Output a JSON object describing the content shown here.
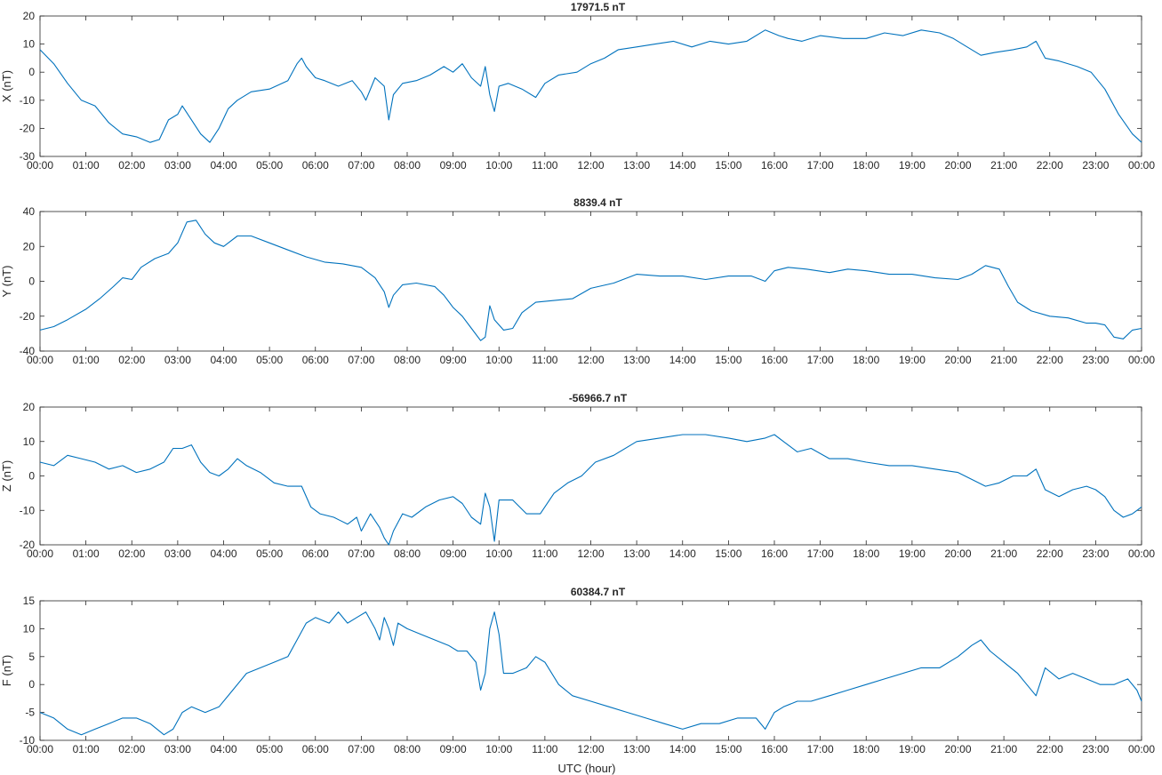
{
  "figure": {
    "xlabel": "UTC (hour)"
  },
  "colors": {
    "line": "#0072bd",
    "axis": "#262626"
  },
  "chart_data": [
    {
      "type": "line",
      "title": "17971.5 nT",
      "ylabel": "X (nT)",
      "xlabel": "",
      "xlim": [
        0,
        24
      ],
      "ylim": [
        -30,
        20
      ],
      "yticks": [
        -30,
        -20,
        -10,
        0,
        10,
        20
      ],
      "xtick_labels": [
        "00:00",
        "01:00",
        "02:00",
        "03:00",
        "04:00",
        "05:00",
        "06:00",
        "07:00",
        "08:00",
        "09:00",
        "10:00",
        "11:00",
        "12:00",
        "13:00",
        "14:00",
        "15:00",
        "16:00",
        "17:00",
        "18:00",
        "19:00",
        "20:00",
        "21:00",
        "22:00",
        "23:00",
        "00:00"
      ],
      "grid": false,
      "series": [
        {
          "x": [
            0,
            0.3,
            0.6,
            0.9,
            1.2,
            1.5,
            1.8,
            2.1,
            2.4,
            2.6,
            2.8,
            3.0,
            3.1,
            3.3,
            3.5,
            3.7,
            3.9,
            4.1,
            4.3,
            4.6,
            5.0,
            5.4,
            5.6,
            5.7,
            5.8,
            6.0,
            6.2,
            6.5,
            6.8,
            7.0,
            7.1,
            7.3,
            7.5,
            7.6,
            7.7,
            7.9,
            8.2,
            8.5,
            8.8,
            9.0,
            9.2,
            9.4,
            9.6,
            9.7,
            9.8,
            9.9,
            10.0,
            10.2,
            10.5,
            10.8,
            11.0,
            11.3,
            11.7,
            12.0,
            12.3,
            12.6,
            13.0,
            13.4,
            13.8,
            14.2,
            14.6,
            15.0,
            15.4,
            15.8,
            16.1,
            16.3,
            16.6,
            17.0,
            17.5,
            18.0,
            18.4,
            18.8,
            19.2,
            19.6,
            19.9,
            20.2,
            20.5,
            20.8,
            21.2,
            21.5,
            21.7,
            21.9,
            22.2,
            22.6,
            22.9,
            23.2,
            23.5,
            23.8,
            24.0
          ],
          "values": [
            8,
            3,
            -4,
            -10,
            -12,
            -18,
            -22,
            -23,
            -25,
            -24,
            -17,
            -15,
            -12,
            -17,
            -22,
            -25,
            -20,
            -13,
            -10,
            -7,
            -6,
            -3,
            3,
            5,
            2,
            -2,
            -3,
            -5,
            -3,
            -7,
            -10,
            -2,
            -5,
            -17,
            -8,
            -4,
            -3,
            -1,
            2,
            0,
            3,
            -2,
            -5,
            2,
            -8,
            -14,
            -5,
            -4,
            -6,
            -9,
            -4,
            -1,
            0,
            3,
            5,
            8,
            9,
            10,
            11,
            9,
            11,
            10,
            11,
            15,
            13,
            12,
            11,
            13,
            12,
            12,
            14,
            13,
            15,
            14,
            12,
            9,
            6,
            7,
            8,
            9,
            11,
            5,
            4,
            2,
            0,
            -6,
            -15,
            -22,
            -25
          ]
        }
      ]
    },
    {
      "type": "line",
      "title": "8839.4 nT",
      "ylabel": "Y (nT)",
      "xlabel": "",
      "xlim": [
        0,
        24
      ],
      "ylim": [
        -40,
        40
      ],
      "yticks": [
        -40,
        -20,
        0,
        20,
        40
      ],
      "xtick_labels": [
        "00:00",
        "01:00",
        "02:00",
        "03:00",
        "04:00",
        "05:00",
        "06:00",
        "07:00",
        "08:00",
        "09:00",
        "10:00",
        "11:00",
        "12:00",
        "13:00",
        "14:00",
        "15:00",
        "16:00",
        "17:00",
        "18:00",
        "19:00",
        "20:00",
        "21:00",
        "22:00",
        "23:00",
        "00:00"
      ],
      "grid": false,
      "series": [
        {
          "x": [
            0,
            0.3,
            0.6,
            1.0,
            1.3,
            1.6,
            1.8,
            2.0,
            2.2,
            2.5,
            2.8,
            3.0,
            3.2,
            3.4,
            3.6,
            3.8,
            4.0,
            4.3,
            4.6,
            5.0,
            5.4,
            5.8,
            6.2,
            6.6,
            7.0,
            7.3,
            7.5,
            7.6,
            7.7,
            7.9,
            8.2,
            8.6,
            8.8,
            9.0,
            9.2,
            9.4,
            9.6,
            9.7,
            9.8,
            9.9,
            10.1,
            10.3,
            10.5,
            10.8,
            11.2,
            11.6,
            12.0,
            12.5,
            13.0,
            13.5,
            14.0,
            14.5,
            15.0,
            15.5,
            15.8,
            16.0,
            16.3,
            16.7,
            17.2,
            17.6,
            18.0,
            18.5,
            19.0,
            19.5,
            20.0,
            20.3,
            20.6,
            20.9,
            21.1,
            21.3,
            21.6,
            22.0,
            22.4,
            22.8,
            23.0,
            23.2,
            23.4,
            23.6,
            23.8,
            24.0
          ],
          "values": [
            -28,
            -26,
            -22,
            -16,
            -10,
            -3,
            2,
            1,
            8,
            13,
            16,
            22,
            34,
            35,
            27,
            22,
            20,
            26,
            26,
            22,
            18,
            14,
            11,
            10,
            8,
            2,
            -6,
            -15,
            -8,
            -2,
            -1,
            -3,
            -8,
            -15,
            -20,
            -27,
            -34,
            -32,
            -14,
            -22,
            -28,
            -27,
            -18,
            -12,
            -11,
            -10,
            -4,
            -1,
            4,
            3,
            3,
            1,
            3,
            3,
            0,
            6,
            8,
            7,
            5,
            7,
            6,
            4,
            4,
            2,
            1,
            4,
            9,
            7,
            -3,
            -12,
            -17,
            -20,
            -21,
            -24,
            -24,
            -25,
            -32,
            -33,
            -28,
            -27
          ]
        }
      ]
    },
    {
      "type": "line",
      "title": "-56966.7 nT",
      "ylabel": "Z (nT)",
      "xlabel": "",
      "xlim": [
        0,
        24
      ],
      "ylim": [
        -20,
        20
      ],
      "yticks": [
        -20,
        -10,
        0,
        10,
        20
      ],
      "xtick_labels": [
        "00:00",
        "01:00",
        "02:00",
        "03:00",
        "04:00",
        "05:00",
        "06:00",
        "07:00",
        "08:00",
        "09:00",
        "10:00",
        "11:00",
        "12:00",
        "13:00",
        "14:00",
        "15:00",
        "16:00",
        "17:00",
        "18:00",
        "19:00",
        "20:00",
        "21:00",
        "22:00",
        "23:00",
        "00:00"
      ],
      "grid": false,
      "series": [
        {
          "x": [
            0,
            0.3,
            0.6,
            0.9,
            1.2,
            1.5,
            1.8,
            2.1,
            2.4,
            2.7,
            2.9,
            3.1,
            3.3,
            3.5,
            3.7,
            3.9,
            4.1,
            4.3,
            4.5,
            4.8,
            5.1,
            5.4,
            5.7,
            5.9,
            6.1,
            6.4,
            6.7,
            6.9,
            7.0,
            7.2,
            7.4,
            7.5,
            7.6,
            7.7,
            7.9,
            8.1,
            8.4,
            8.7,
            9.0,
            9.2,
            9.4,
            9.6,
            9.7,
            9.8,
            9.9,
            10.0,
            10.3,
            10.6,
            10.9,
            11.2,
            11.5,
            11.8,
            12.1,
            12.5,
            13.0,
            13.5,
            14.0,
            14.5,
            15.0,
            15.4,
            15.8,
            16.0,
            16.2,
            16.5,
            16.8,
            17.2,
            17.6,
            18.0,
            18.5,
            19.0,
            19.5,
            20.0,
            20.3,
            20.6,
            20.9,
            21.2,
            21.5,
            21.7,
            21.9,
            22.2,
            22.5,
            22.8,
            23.0,
            23.2,
            23.4,
            23.6,
            23.8,
            24.0
          ],
          "values": [
            4,
            3,
            6,
            5,
            4,
            2,
            3,
            1,
            2,
            4,
            8,
            8,
            9,
            4,
            1,
            0,
            2,
            5,
            3,
            1,
            -2,
            -3,
            -3,
            -9,
            -11,
            -12,
            -14,
            -12,
            -16,
            -11,
            -15,
            -18,
            -20,
            -16,
            -11,
            -12,
            -9,
            -7,
            -6,
            -8,
            -12,
            -14,
            -5,
            -9,
            -19,
            -7,
            -7,
            -11,
            -11,
            -5,
            -2,
            0,
            4,
            6,
            10,
            11,
            12,
            12,
            11,
            10,
            11,
            12,
            10,
            7,
            8,
            5,
            5,
            4,
            3,
            3,
            2,
            1,
            -1,
            -3,
            -2,
            0,
            0,
            2,
            -4,
            -6,
            -4,
            -3,
            -4,
            -6,
            -10,
            -12,
            -11,
            -9
          ]
        }
      ]
    },
    {
      "type": "line",
      "title": "60384.7 nT",
      "ylabel": "F (nT)",
      "xlabel": "UTC (hour)",
      "xlim": [
        0,
        24
      ],
      "ylim": [
        -10,
        15
      ],
      "yticks": [
        -10,
        -5,
        0,
        5,
        10,
        15
      ],
      "xtick_labels": [
        "00:00",
        "01:00",
        "02:00",
        "03:00",
        "04:00",
        "05:00",
        "06:00",
        "07:00",
        "08:00",
        "09:00",
        "10:00",
        "11:00",
        "12:00",
        "13:00",
        "14:00",
        "15:00",
        "16:00",
        "17:00",
        "18:00",
        "19:00",
        "20:00",
        "21:00",
        "22:00",
        "23:00",
        "00:00"
      ],
      "grid": false,
      "series": [
        {
          "x": [
            0,
            0.3,
            0.6,
            0.9,
            1.2,
            1.5,
            1.8,
            2.1,
            2.4,
            2.7,
            2.9,
            3.1,
            3.3,
            3.6,
            3.9,
            4.2,
            4.5,
            4.8,
            5.1,
            5.4,
            5.6,
            5.8,
            6.0,
            6.3,
            6.5,
            6.7,
            6.9,
            7.1,
            7.3,
            7.4,
            7.5,
            7.6,
            7.7,
            7.8,
            8.0,
            8.3,
            8.6,
            8.9,
            9.1,
            9.3,
            9.5,
            9.6,
            9.7,
            9.8,
            9.9,
            10.0,
            10.1,
            10.3,
            10.6,
            10.8,
            11.0,
            11.3,
            11.6,
            12.0,
            12.4,
            12.8,
            13.2,
            13.6,
            14.0,
            14.4,
            14.8,
            15.2,
            15.6,
            15.8,
            16.0,
            16.2,
            16.5,
            16.8,
            17.2,
            17.6,
            18.0,
            18.4,
            18.8,
            19.2,
            19.6,
            20.0,
            20.3,
            20.5,
            20.7,
            21.0,
            21.3,
            21.5,
            21.7,
            21.9,
            22.2,
            22.5,
            22.8,
            23.1,
            23.4,
            23.7,
            23.9,
            24.0
          ],
          "values": [
            -5,
            -6,
            -8,
            -9,
            -8,
            -7,
            -6,
            -6,
            -7,
            -9,
            -8,
            -5,
            -4,
            -5,
            -4,
            -1,
            2,
            3,
            4,
            5,
            8,
            11,
            12,
            11,
            13,
            11,
            12,
            13,
            10,
            8,
            12,
            10,
            7,
            11,
            10,
            9,
            8,
            7,
            6,
            6,
            4,
            -1,
            2,
            10,
            13,
            9,
            2,
            2,
            3,
            5,
            4,
            0,
            -2,
            -3,
            -4,
            -5,
            -6,
            -7,
            -8,
            -7,
            -7,
            -6,
            -6,
            -8,
            -5,
            -4,
            -3,
            -3,
            -2,
            -1,
            0,
            1,
            2,
            3,
            3,
            5,
            7,
            8,
            6,
            4,
            2,
            0,
            -2,
            3,
            1,
            2,
            1,
            0,
            0,
            1,
            -1,
            -3
          ]
        }
      ]
    }
  ]
}
